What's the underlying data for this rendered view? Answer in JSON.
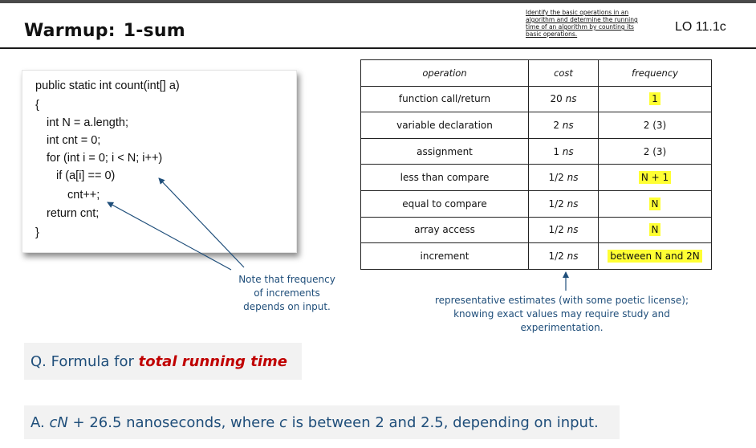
{
  "slide": {
    "title_part1": "Warmup:",
    "title_part2": "1-sum",
    "learning_objective": "Identify the basic operations in an algorithm and determine the running time of an algorithm by counting its basic operations.",
    "lo_code": "LO 11.1c"
  },
  "code": {
    "lines": [
      "public static int count(int[] a)",
      "{",
      "int N = a.length;",
      "int cnt = 0;",
      "for (int i = 0; i < N; i++)",
      "if (a[i] == 0)",
      "cnt++;",
      "return cnt;",
      "}"
    ]
  },
  "table": {
    "headers": [
      "operation",
      "cost",
      "frequency"
    ],
    "rows": [
      {
        "operation": "function call/return",
        "cost_num": "20",
        "cost_unit": "ns",
        "frequency": "1",
        "highlight": true
      },
      {
        "operation": "variable declaration",
        "cost_num": "2",
        "cost_unit": "ns",
        "frequency": "2 (3)",
        "highlight": false
      },
      {
        "operation": "assignment",
        "cost_num": "1",
        "cost_unit": "ns",
        "frequency": "2 (3)",
        "highlight": false
      },
      {
        "operation": "less than compare",
        "cost_num": "1/2",
        "cost_unit": "ns",
        "frequency": "N + 1",
        "highlight": true
      },
      {
        "operation": "equal to compare",
        "cost_num": "1/2",
        "cost_unit": "ns",
        "frequency": "N",
        "highlight": true
      },
      {
        "operation": "array access",
        "cost_num": "1/2",
        "cost_unit": "ns",
        "frequency": "N",
        "highlight": true
      },
      {
        "operation": "increment",
        "cost_num": "1/2",
        "cost_unit": "ns",
        "frequency": "between N and 2N",
        "highlight": true
      }
    ]
  },
  "note": {
    "line1": "Note that frequency",
    "line2": "of increments",
    "line3": "depends on input."
  },
  "estimates": {
    "line1": "representative estimates (with some poetic license);",
    "line2": "knowing exact values may require study and",
    "line3": "experimentation."
  },
  "question": {
    "prefix": "Q. Formula for ",
    "emphasis": "total running time"
  },
  "answer": {
    "prefix": "A. ",
    "var_c": "c",
    "var_N": "N",
    "mid": " + 26.5 nanoseconds, where ",
    "var_c2": "c",
    "suffix": " is between 2 and 2.5, depending on input."
  },
  "colors": {
    "blue_text": "#1f4e7a",
    "red_emphasis": "#c00000",
    "highlight": "#ffff33"
  }
}
